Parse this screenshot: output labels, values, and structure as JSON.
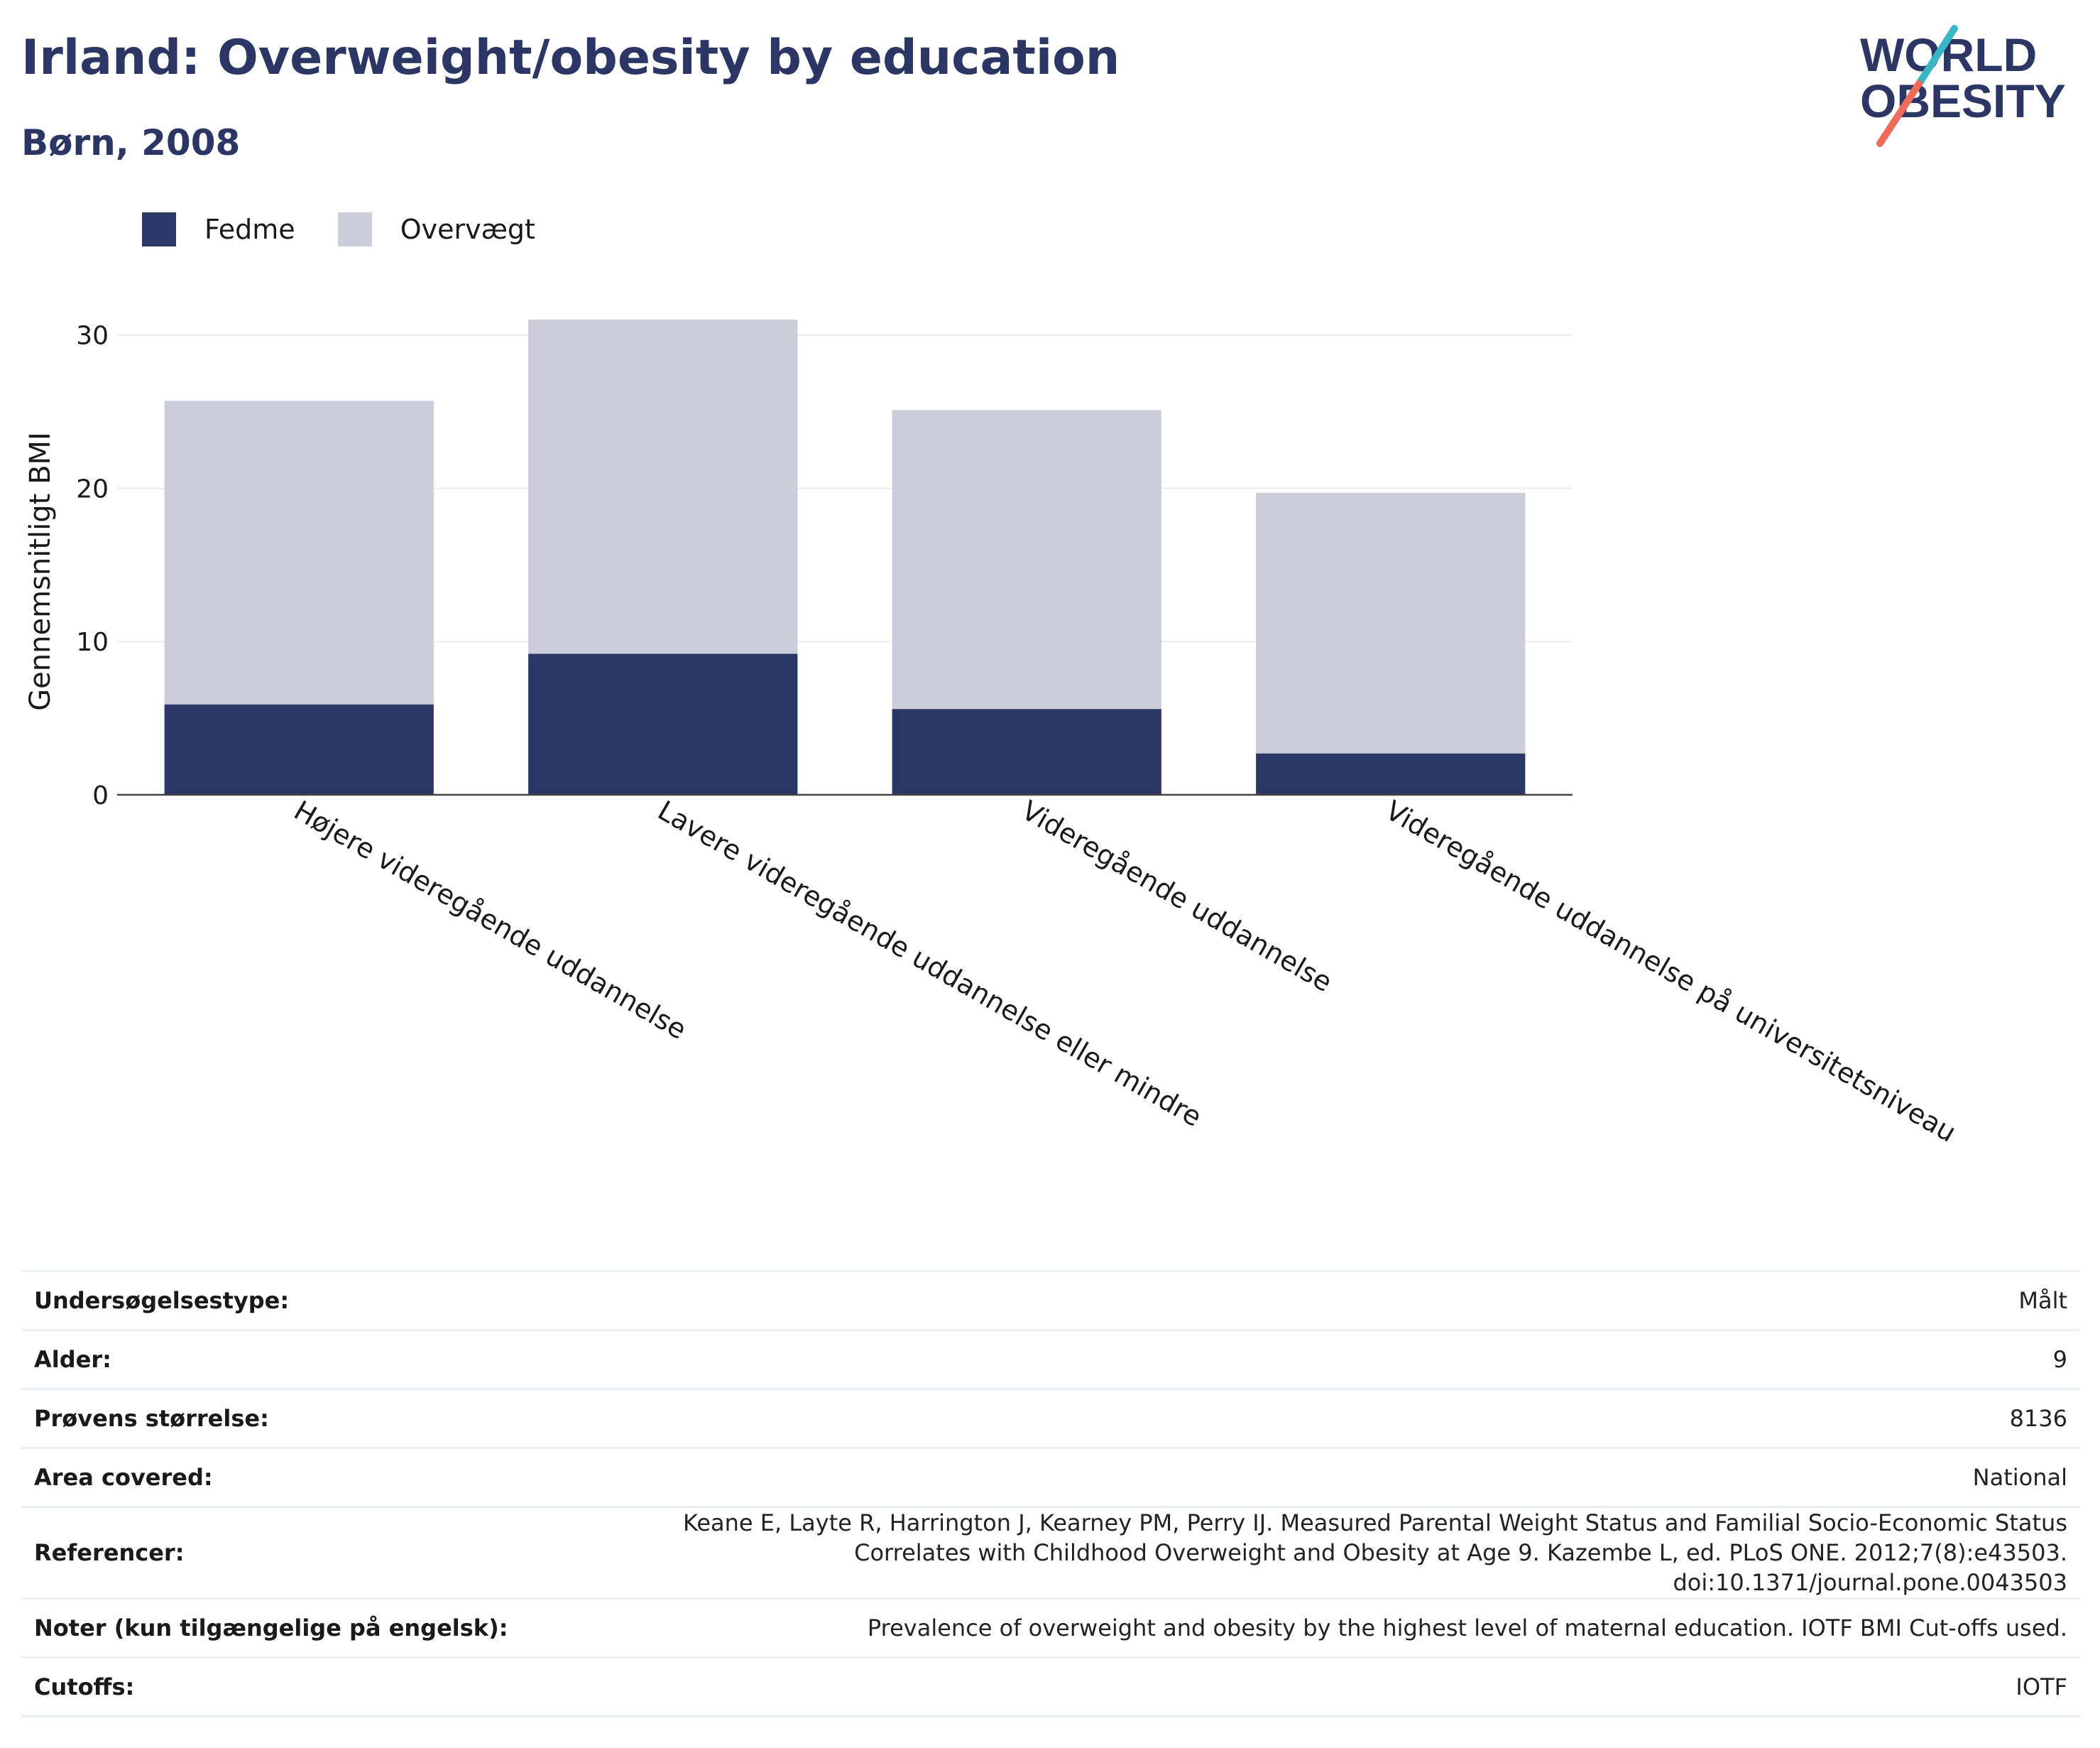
{
  "header": {
    "title": "Irland: Overweight/obesity by education",
    "subtitle": "Børn, 2008",
    "logo_line1": "WORLD",
    "logo_line2": "OBESITY"
  },
  "colors": {
    "title": "#2b3664",
    "obesity": "#2b3664",
    "overweight": "#cbcdd9",
    "logo_slash_top": "#3bb6c6",
    "logo_slash_bottom": "#ef6b5a"
  },
  "chart_data": {
    "type": "bar",
    "stacked": true,
    "categories": [
      "Højere videregående uddannelse",
      "Lavere videregående uddannelse eller mindre",
      "Videregående uddannelse",
      "Videregående uddannelse på universitetsniveau"
    ],
    "series": [
      {
        "name": "Fedme",
        "color": "#2b3664",
        "values": [
          5.9,
          9.2,
          5.6,
          2.7
        ]
      },
      {
        "name": "Overvægt",
        "color": "#cbcdd9",
        "values": [
          19.8,
          21.8,
          19.5,
          17.0
        ]
      }
    ],
    "xlabel": "",
    "ylabel": "Gennemsnitligt BMI",
    "yticks": [
      0,
      10,
      20,
      30
    ],
    "ylim": [
      0,
      31
    ],
    "grid": true,
    "legend_position": "top-left"
  },
  "metadata": [
    {
      "label": "Undersøgelsestype:",
      "value": "Målt"
    },
    {
      "label": "Alder:",
      "value": "9"
    },
    {
      "label": "Prøvens størrelse:",
      "value": "8136"
    },
    {
      "label": "Area covered:",
      "value": "National"
    },
    {
      "label": "Referencer:",
      "value": "Keane E, Layte R, Harrington J, Kearney PM, Perry IJ. Measured Parental Weight Status and Familial Socio-Economic Status Correlates with Childhood Overweight and Obesity at Age 9. Kazembe L, ed. PLoS ONE. 2012;7(8):e43503. doi:10.1371/journal.pone.0043503"
    },
    {
      "label": "Noter (kun tilgængelige på engelsk):",
      "value": "Prevalence of overweight and obesity by the highest level of maternal education. IOTF BMI Cut-offs used."
    },
    {
      "label": "Cutoffs:",
      "value": "IOTF"
    }
  ]
}
